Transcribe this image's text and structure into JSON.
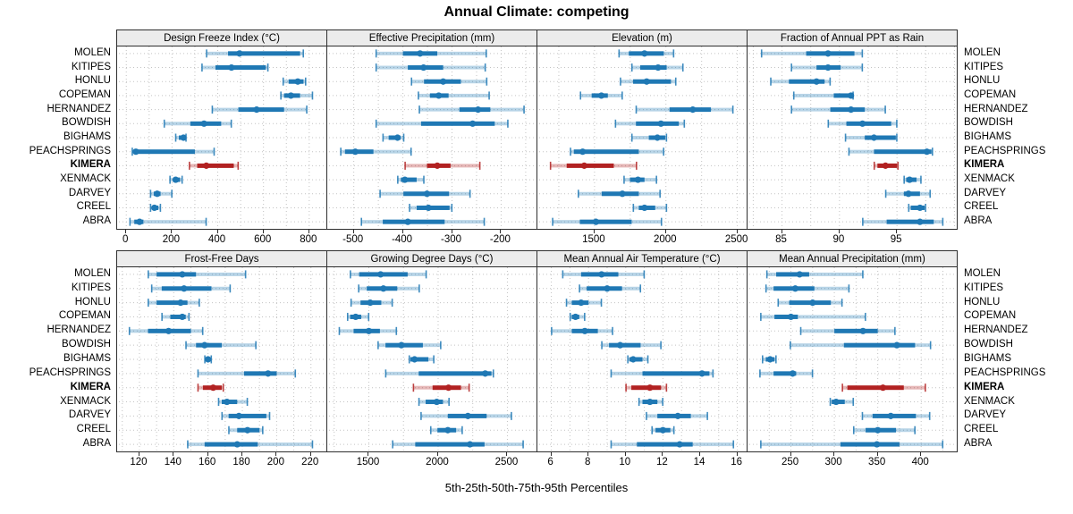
{
  "title": "Annual Climate: competing",
  "caption": "5th-25th-50th-75th-95th Percentiles",
  "sites": [
    "MOLEN",
    "KITIPES",
    "HONLU",
    "COPEMAN",
    "HERNANDEZ",
    "BOWDISH",
    "BIGHAMS",
    "PEACHSPRINGS",
    "KIMERA",
    "XENMACK",
    "DARVEY",
    "CREEL",
    "ABRA"
  ],
  "highlight_site": "KIMERA",
  "colors": {
    "base": "#1f78b4",
    "highlight": "#b22222",
    "grid": "#c3c3c3",
    "strip_bg": "#ececec",
    "border": "#2e2e2e"
  },
  "chart_data": {
    "type": "dotplot",
    "note": "trellis of percentile range plots; values are [5th,25th,50th,75th,95th] percentiles per site, sites ordered as in sites[]",
    "percentile_labels": [
      5,
      25,
      50,
      75,
      95
    ],
    "rows": [
      [
        {
          "title": "Design Freeze Index (°C)",
          "xlim": [
            -40,
            875
          ],
          "ticks": [
            0,
            200,
            400,
            600,
            800
          ],
          "grid": [
            0,
            100,
            200,
            300,
            400,
            500,
            600,
            700,
            800
          ],
          "values": [
            [
              350,
              445,
              495,
              760,
              775
            ],
            [
              330,
              390,
              460,
              610,
              620
            ],
            [
              685,
              710,
              750,
              775,
              785
            ],
            [
              675,
              690,
              720,
              760,
              815
            ],
            [
              375,
              490,
              570,
              690,
              790
            ],
            [
              165,
              280,
              340,
              415,
              460
            ],
            [
              215,
              230,
              250,
              258,
              262
            ],
            [
              25,
              32,
              42,
              300,
              385
            ],
            [
              275,
              310,
              350,
              470,
              490
            ],
            [
              190,
              205,
              216,
              235,
              245
            ],
            [
              105,
              120,
              135,
              150,
              200
            ],
            [
              105,
              115,
              123,
              140,
              150
            ],
            [
              15,
              35,
              58,
              75,
              350
            ]
          ]
        },
        {
          "title": "Effective Precipitation (mm)",
          "xlim": [
            -554,
            -128
          ],
          "ticks": [
            -500,
            -400,
            -300,
            -200
          ],
          "grid": [
            -500,
            -450,
            -400,
            -350,
            -300,
            -250,
            -200,
            -150
          ],
          "values": [
            [
              -455,
              -400,
              -365,
              -330,
              -230
            ],
            [
              -455,
              -390,
              -358,
              -318,
              -232
            ],
            [
              -383,
              -357,
              -318,
              -282,
              -229
            ],
            [
              -369,
              -345,
              -327,
              -307,
              -224
            ],
            [
              -367,
              -285,
              -247,
              -222,
              -153
            ],
            [
              -455,
              -363,
              -258,
              -213,
              -186
            ],
            [
              -441,
              -429,
              -411,
              -405,
              -398
            ],
            [
              -527,
              -518,
              -497,
              -460,
              -383
            ],
            [
              -396,
              -351,
              -330,
              -303,
              -243
            ],
            [
              -411,
              -404,
              -396,
              -372,
              -357
            ],
            [
              -447,
              -399,
              -351,
              -306,
              -263
            ],
            [
              -387,
              -372,
              -348,
              -305,
              -300
            ],
            [
              -485,
              -441,
              -390,
              -315,
              -234
            ]
          ]
        },
        {
          "title": "Elevation (m)",
          "xlim": [
            1100,
            2565
          ],
          "ticks": [
            1500,
            2000,
            2500
          ],
          "grid": [
            1250,
            1500,
            1750,
            2000,
            2250,
            2500
          ],
          "values": [
            [
              1670,
              1740,
              1850,
              1985,
              2055
            ],
            [
              1760,
              1820,
              1945,
              2005,
              2120
            ],
            [
              1680,
              1770,
              1865,
              2035,
              2070
            ],
            [
              1400,
              1480,
              1548,
              1593,
              1695
            ],
            [
              1790,
              2025,
              2188,
              2315,
              2470
            ],
            [
              1645,
              1790,
              1965,
              2090,
              2130
            ],
            [
              1760,
              1880,
              1940,
              1995,
              2005
            ],
            [
              1330,
              1355,
              1417,
              1810,
              1985
            ],
            [
              1190,
              1305,
              1428,
              1635,
              1795
            ],
            [
              1705,
              1748,
              1804,
              1850,
              1935
            ],
            [
              1385,
              1550,
              1695,
              1810,
              1960
            ],
            [
              1770,
              1810,
              1850,
              1925,
              2005
            ],
            [
              1205,
              1397,
              1510,
              1760,
              1970
            ]
          ]
        },
        {
          "title": "Fraction of Annual PPT as Rain",
          "xlim": [
            82,
            100.2
          ],
          "ticks": [
            85,
            90,
            95
          ],
          "grid": [
            82.5,
            85,
            87.5,
            90,
            92.5,
            95,
            97.5,
            100
          ],
          "values": [
            [
              83.2,
              87.1,
              89,
              91.3,
              92
            ],
            [
              85.8,
              88,
              89,
              90.1,
              92
            ],
            [
              84,
              85.6,
              88,
              88.7,
              89.2
            ],
            [
              86,
              89.5,
              91,
              91,
              91.2
            ],
            [
              85.8,
              89.2,
              91,
              92.2,
              94
            ],
            [
              89,
              90.6,
              92,
              94.5,
              95
            ],
            [
              90.5,
              92.2,
              93,
              94.9,
              95
            ],
            [
              90.8,
              93,
              97.6,
              98,
              98.1
            ],
            [
              93,
              93.3,
              94,
              95,
              95.1
            ],
            [
              95.6,
              95.8,
              96.1,
              96.7,
              97.1
            ],
            [
              94,
              95.6,
              96,
              97,
              97.9
            ],
            [
              96,
              96.2,
              97,
              97.4,
              97.5
            ],
            [
              92,
              94.1,
              97,
              98.2,
              99
            ]
          ]
        }
      ],
      [
        {
          "title": "Frost-Free Days",
          "xlim": [
            107,
            229
          ],
          "ticks": [
            120,
            140,
            160,
            180,
            200,
            220
          ],
          "grid": [
            110,
            120,
            130,
            140,
            150,
            160,
            170,
            180,
            190,
            200,
            210,
            220
          ],
          "values": [
            [
              125,
              130,
              145,
              153,
              182
            ],
            [
              127,
              133,
              146,
              162,
              173
            ],
            [
              125,
              130,
              144,
              148,
              155
            ],
            [
              133,
              138,
              145,
              147,
              149
            ],
            [
              114,
              125,
              137,
              150,
              157
            ],
            [
              147,
              153,
              158,
              168,
              188
            ],
            [
              158,
              159,
              160,
              161,
              162
            ],
            [
              154,
              181,
              195,
              200,
              211
            ],
            [
              154,
              157,
              163,
              168,
              169
            ],
            [
              166,
              168,
              171,
              177,
              183
            ],
            [
              168,
              172,
              178,
              194,
              196
            ],
            [
              172,
              177,
              183,
              190,
              192
            ],
            [
              148,
              158,
              177,
              189,
              221
            ]
          ]
        },
        {
          "title": "Growing Degree Days (°C)",
          "xlim": [
            1200,
            2710
          ],
          "ticks": [
            1500,
            2000,
            2500
          ],
          "grid": [
            1250,
            1500,
            1750,
            2000,
            2250,
            2500
          ],
          "values": [
            [
              1365,
              1430,
              1585,
              1780,
              1915
            ],
            [
              1425,
              1485,
              1605,
              1705,
              1865
            ],
            [
              1370,
              1440,
              1510,
              1590,
              1670
            ],
            [
              1345,
              1365,
              1405,
              1445,
              1500
            ],
            [
              1285,
              1390,
              1500,
              1580,
              1700
            ],
            [
              1565,
              1620,
              1735,
              1890,
              2020
            ],
            [
              1790,
              1800,
              1830,
              1930,
              1970
            ],
            [
              1620,
              1860,
              2340,
              2385,
              2400
            ],
            [
              1820,
              1960,
              2075,
              2165,
              2225
            ],
            [
              1860,
              1910,
              1990,
              2035,
              2080
            ],
            [
              1875,
              2070,
              2215,
              2350,
              2530
            ],
            [
              1945,
              1995,
              2070,
              2130,
              2175
            ],
            [
              1670,
              1835,
              2230,
              2335,
              2615
            ]
          ]
        },
        {
          "title": "Mean Annual Air Temperature (°C)",
          "xlim": [
            5.25,
            16.5
          ],
          "ticks": [
            6,
            8,
            10,
            12,
            14,
            16
          ],
          "grid": [
            6,
            7,
            8,
            9,
            10,
            11,
            12,
            13,
            14,
            15,
            16
          ],
          "values": [
            [
              6.6,
              7.6,
              8.7,
              9.6,
              11
            ],
            [
              7.5,
              7.9,
              9,
              9.8,
              10.8
            ],
            [
              6.8,
              7.1,
              7.6,
              8,
              8.7
            ],
            [
              7,
              7.1,
              7.3,
              7.5,
              7.8
            ],
            [
              6,
              7.1,
              7.8,
              8.5,
              9.3
            ],
            [
              8.7,
              9.1,
              9.7,
              10.8,
              11.9
            ],
            [
              10.1,
              10.2,
              10.4,
              10.9,
              11.2
            ],
            [
              9.2,
              10.9,
              14.1,
              14.5,
              14.7
            ],
            [
              10,
              10.3,
              11.3,
              11.9,
              12.2
            ],
            [
              10.7,
              10.9,
              11.3,
              11.7,
              12
            ],
            [
              11.1,
              11.7,
              12.8,
              13.5,
              14.4
            ],
            [
              11.4,
              11.6,
              12,
              12.4,
              12.6
            ],
            [
              9.2,
              10.6,
              12.9,
              13.6,
              15.8
            ]
          ]
        },
        {
          "title": "Mean Annual Precipitation (mm)",
          "xlim": [
            200,
            441
          ],
          "ticks": [
            250,
            300,
            350,
            400
          ],
          "grid": [
            225,
            250,
            275,
            300,
            325,
            350,
            375,
            400,
            425
          ],
          "values": [
            [
              222,
              233,
              260,
              271,
              333
            ],
            [
              221,
              230,
              255,
              277,
              317
            ],
            [
              235,
              248,
              275,
              296,
              309
            ],
            [
              215,
              231,
              250,
              258,
              336
            ],
            [
              261,
              300,
              333,
              350,
              370
            ],
            [
              249,
              311,
              372,
              393,
              411
            ],
            [
              217,
              221,
              226,
              231,
              233
            ],
            [
              214,
              230,
              252,
              256,
              275
            ],
            [
              309,
              315,
              356,
              380,
              405
            ],
            [
              295,
              297,
              302,
              312,
              322
            ],
            [
              332,
              344,
              365,
              394,
              410
            ],
            [
              322,
              336,
              350,
              371,
              393
            ],
            [
              215,
              307,
              349,
              375,
              425
            ]
          ]
        }
      ]
    ]
  }
}
